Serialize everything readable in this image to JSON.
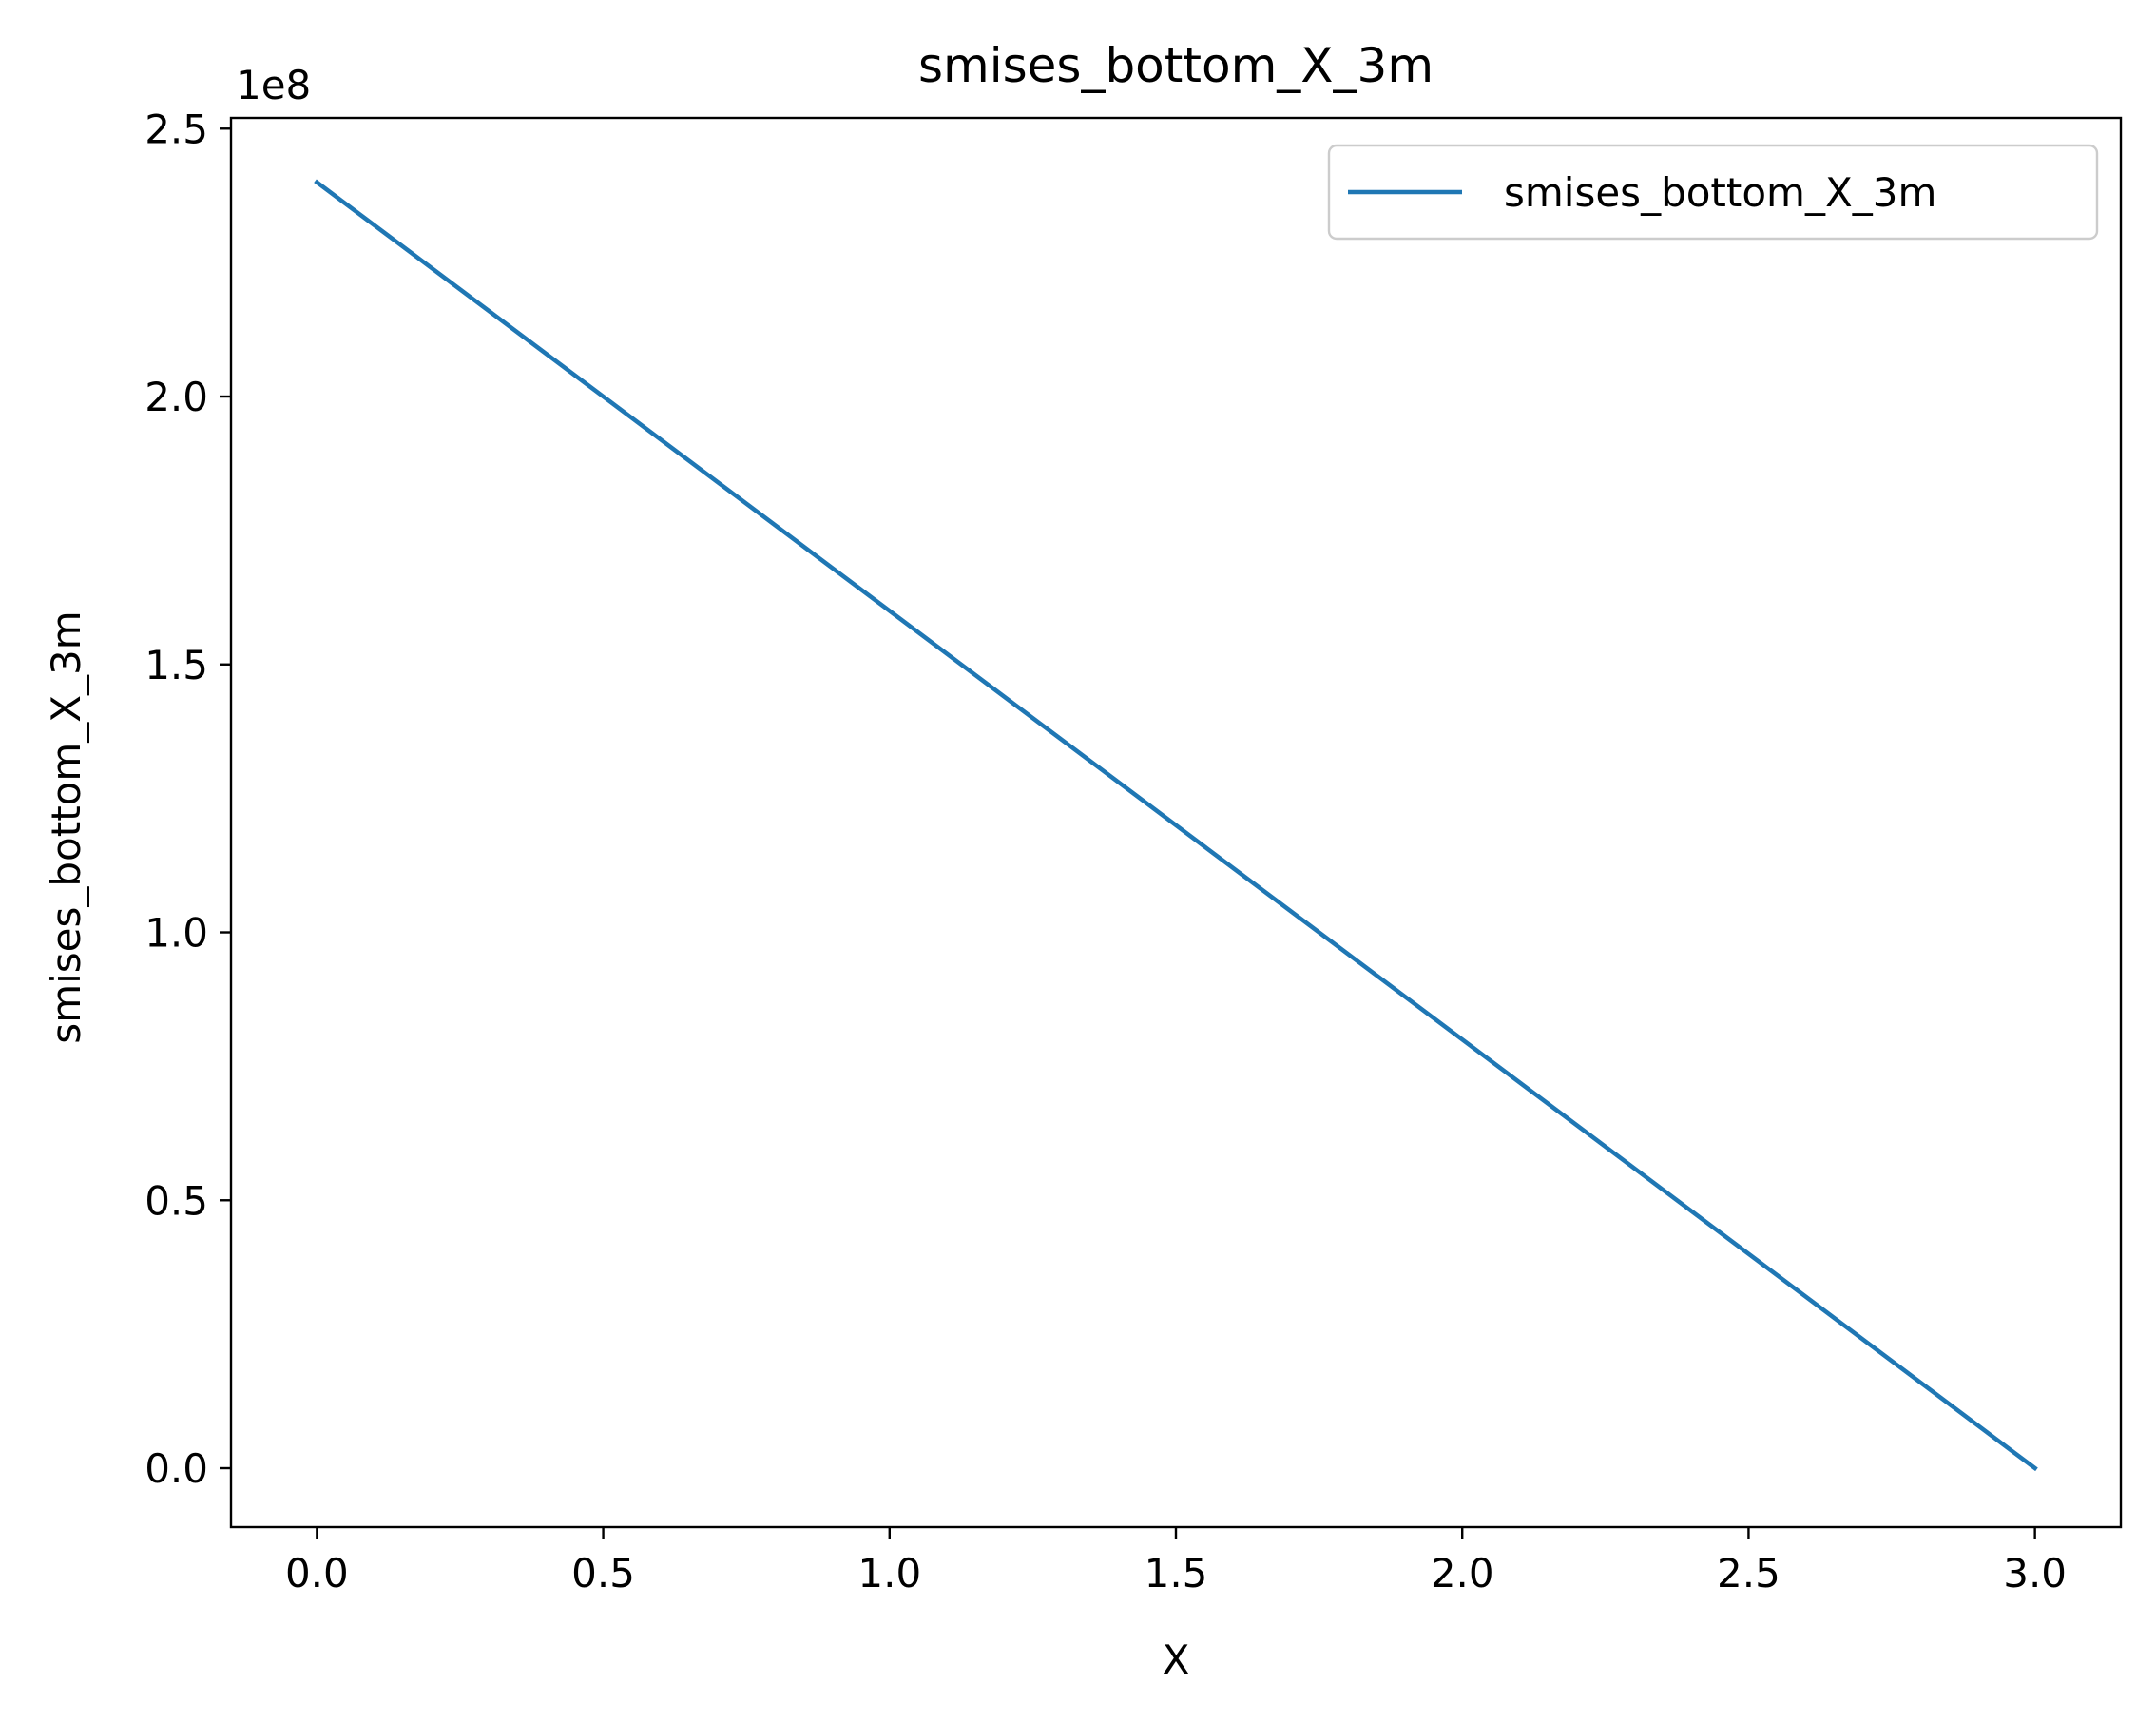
{
  "chart_data": {
    "type": "line",
    "title": "smises_bottom_X_3m",
    "xlabel": "X",
    "ylabel": "smises_bottom_X_3m",
    "y_offset_label": "1e8",
    "xlim": [
      -0.15,
      3.15
    ],
    "ylim": [
      -0.11,
      2.52
    ],
    "x_ticks": [
      0.0,
      0.5,
      1.0,
      1.5,
      2.0,
      2.5,
      3.0
    ],
    "x_tick_labels": [
      "0.0",
      "0.5",
      "1.0",
      "1.5",
      "2.0",
      "2.5",
      "3.0"
    ],
    "y_ticks": [
      0.0,
      0.5,
      1.0,
      1.5,
      2.0,
      2.5
    ],
    "y_tick_labels": [
      "0.0",
      "0.5",
      "1.0",
      "1.5",
      "2.0",
      "2.5"
    ],
    "grid": false,
    "legend_position": "top-right",
    "series": [
      {
        "name": "smises_bottom_X_3m",
        "color": "#1f77b4",
        "x": [
          0.0,
          3.0
        ],
        "y": [
          2.4,
          0.0
        ]
      }
    ]
  }
}
